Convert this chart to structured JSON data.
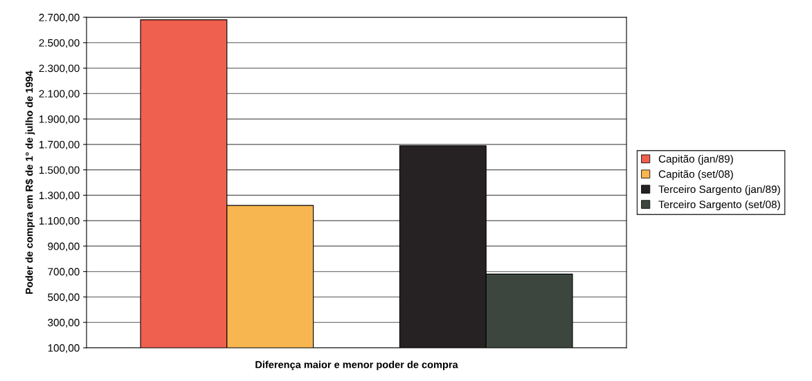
{
  "chart_data": {
    "type": "bar",
    "xlabel": "Diferença maior e menor poder de compra",
    "ylabel": "Poder de compra em R$ de 1° de julho de 1994",
    "categories": [
      null
    ],
    "series": [
      {
        "name": "Capitão (jan/89)",
        "color": "#f0604e",
        "values": [
          2680
        ]
      },
      {
        "name": "Capitão (set/08)",
        "color": "#f8b650",
        "values": [
          1220
        ]
      },
      {
        "name": "Terceiro Sargento (jan/89)",
        "color": "#262224",
        "values": [
          1690
        ]
      },
      {
        "name": "Terceiro Sargento (set/08)",
        "color": "#3c463e",
        "values": [
          680
        ]
      }
    ],
    "ylim": [
      100,
      2700
    ],
    "yticks": [
      {
        "value": 100,
        "label": "100,00"
      },
      {
        "value": 300,
        "label": "300,00"
      },
      {
        "value": 500,
        "label": "500,00"
      },
      {
        "value": 700,
        "label": "700,00"
      },
      {
        "value": 900,
        "label": "900,00"
      },
      {
        "value": 1100,
        "label": "1.100,00"
      },
      {
        "value": 1300,
        "label": "1.300,00"
      },
      {
        "value": 1500,
        "label": "1.500,00"
      },
      {
        "value": 1700,
        "label": "1.700,00"
      },
      {
        "value": 1900,
        "label": "1.900,00"
      },
      {
        "value": 2100,
        "label": "2.100,00"
      },
      {
        "value": 2300,
        "label": "2.300,00"
      },
      {
        "value": 2500,
        "label": "2.500,00"
      },
      {
        "value": 2700,
        "label": "2.700,00"
      }
    ],
    "grid": "y",
    "legend": "right"
  }
}
